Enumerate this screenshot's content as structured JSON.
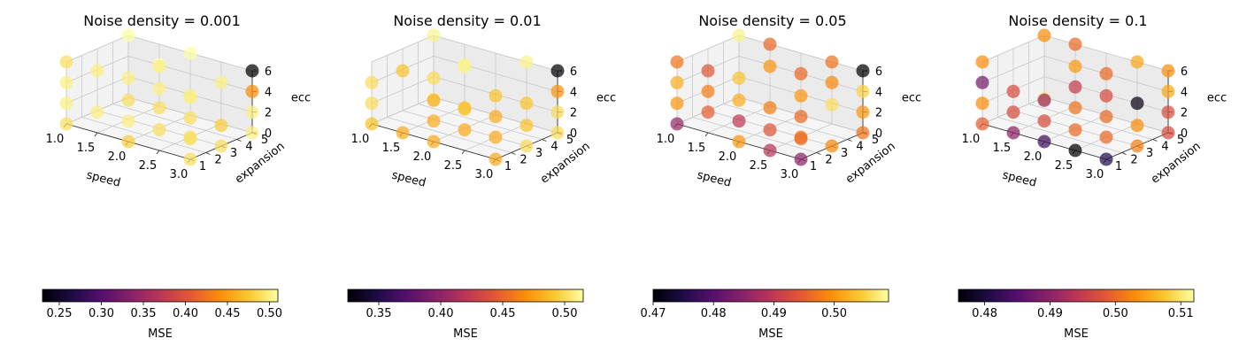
{
  "chart_data": [
    {
      "type": "scatter3d",
      "title": "Noise density = 0.001",
      "xlabel": "speed",
      "ylabel": "expansion",
      "zlabel": "ecc",
      "x_ticks": [
        "1.0",
        "1.5",
        "2.0",
        "2.5",
        "3.0"
      ],
      "y_ticks": [
        "1",
        "2",
        "3",
        "4",
        "5"
      ],
      "z_ticks": [
        "0",
        "2",
        "4",
        "6"
      ],
      "xlim": [
        1.0,
        3.0
      ],
      "ylim": [
        1,
        5
      ],
      "zlim": [
        0,
        6
      ],
      "colorbar": {
        "label": "MSE",
        "min": 0.23,
        "max": 0.51,
        "ticks": [
          "0.25",
          "0.30",
          "0.35",
          "0.40",
          "0.45",
          "0.50"
        ],
        "tick_values": [
          0.25,
          0.3,
          0.35,
          0.4,
          0.45,
          0.5
        ]
      },
      "points": [
        {
          "x": 1.0,
          "y": 1,
          "z": 6,
          "mse": 0.49
        },
        {
          "x": 1.0,
          "y": 1,
          "z": 4,
          "mse": 0.5
        },
        {
          "x": 1.0,
          "y": 1,
          "z": 2,
          "mse": 0.5
        },
        {
          "x": 1.0,
          "y": 1,
          "z": 0,
          "mse": 0.49
        },
        {
          "x": 1.5,
          "y": 1,
          "z": 6,
          "mse": 0.5
        },
        {
          "x": 1.5,
          "y": 1,
          "z": 2,
          "mse": 0.5
        },
        {
          "x": 2.0,
          "y": 1,
          "z": 4,
          "mse": 0.49
        },
        {
          "x": 2.0,
          "y": 1,
          "z": 2,
          "mse": 0.5
        },
        {
          "x": 2.0,
          "y": 1,
          "z": 0,
          "mse": 0.48
        },
        {
          "x": 2.5,
          "y": 1,
          "z": 6,
          "mse": 0.5
        },
        {
          "x": 2.5,
          "y": 1,
          "z": 2,
          "mse": 0.49
        },
        {
          "x": 3.0,
          "y": 1,
          "z": 6,
          "mse": 0.5
        },
        {
          "x": 3.0,
          "y": 1,
          "z": 4,
          "mse": 0.49
        },
        {
          "x": 3.0,
          "y": 1,
          "z": 2,
          "mse": 0.49
        },
        {
          "x": 3.0,
          "y": 1,
          "z": 0,
          "mse": 0.49
        },
        {
          "x": 1.5,
          "y": 3,
          "z": 4,
          "mse": 0.5
        },
        {
          "x": 2.0,
          "y": 3,
          "z": 6,
          "mse": 0.5
        },
        {
          "x": 2.0,
          "y": 3,
          "z": 2,
          "mse": 0.49
        },
        {
          "x": 2.5,
          "y": 3,
          "z": 4,
          "mse": 0.5
        },
        {
          "x": 2.5,
          "y": 3,
          "z": 0,
          "mse": 0.49
        },
        {
          "x": 3.0,
          "y": 3,
          "z": 2,
          "mse": 0.48
        },
        {
          "x": 3.0,
          "y": 3,
          "z": 0,
          "mse": 0.49
        },
        {
          "x": 1.0,
          "y": 5,
          "z": 6,
          "mse": 0.51
        },
        {
          "x": 1.5,
          "y": 5,
          "z": 4,
          "mse": 0.51
        },
        {
          "x": 2.0,
          "y": 5,
          "z": 6,
          "mse": 0.51
        },
        {
          "x": 2.5,
          "y": 5,
          "z": 4,
          "mse": 0.5
        },
        {
          "x": 3.0,
          "y": 5,
          "z": 6,
          "mse": 0.23
        },
        {
          "x": 3.0,
          "y": 5,
          "z": 4,
          "mse": 0.44
        },
        {
          "x": 3.0,
          "y": 5,
          "z": 2,
          "mse": 0.5
        },
        {
          "x": 3.0,
          "y": 5,
          "z": 0,
          "mse": 0.5
        }
      ]
    },
    {
      "type": "scatter3d",
      "title": "Noise density = 0.01",
      "xlabel": "speed",
      "ylabel": "expansion",
      "zlabel": "ecc",
      "x_ticks": [
        "1.0",
        "1.5",
        "2.0",
        "2.5",
        "3.0"
      ],
      "y_ticks": [
        "1",
        "2",
        "3",
        "4",
        "5"
      ],
      "z_ticks": [
        "0",
        "2",
        "4",
        "6"
      ],
      "xlim": [
        1.0,
        3.0
      ],
      "ylim": [
        1,
        5
      ],
      "zlim": [
        0,
        6
      ],
      "colorbar": {
        "label": "MSE",
        "min": 0.325,
        "max": 0.515,
        "ticks": [
          "0.35",
          "0.40",
          "0.45",
          "0.50"
        ],
        "tick_values": [
          0.35,
          0.4,
          0.45,
          0.5
        ]
      },
      "points": [
        {
          "x": 1.0,
          "y": 1,
          "z": 4,
          "mse": 0.5
        },
        {
          "x": 1.0,
          "y": 1,
          "z": 2,
          "mse": 0.5
        },
        {
          "x": 1.0,
          "y": 1,
          "z": 0,
          "mse": 0.49
        },
        {
          "x": 1.5,
          "y": 1,
          "z": 6,
          "mse": 0.49
        },
        {
          "x": 1.5,
          "y": 1,
          "z": 0,
          "mse": 0.48
        },
        {
          "x": 2.0,
          "y": 1,
          "z": 4,
          "mse": 0.48
        },
        {
          "x": 2.0,
          "y": 1,
          "z": 2,
          "mse": 0.48
        },
        {
          "x": 2.0,
          "y": 1,
          "z": 0,
          "mse": 0.48
        },
        {
          "x": 2.5,
          "y": 1,
          "z": 4,
          "mse": 0.49
        },
        {
          "x": 2.5,
          "y": 1,
          "z": 2,
          "mse": 0.48
        },
        {
          "x": 3.0,
          "y": 1,
          "z": 0,
          "mse": 0.48
        },
        {
          "x": 1.5,
          "y": 3,
          "z": 4,
          "mse": 0.5
        },
        {
          "x": 1.5,
          "y": 3,
          "z": 2,
          "mse": 0.51
        },
        {
          "x": 2.0,
          "y": 3,
          "z": 6,
          "mse": 0.51
        },
        {
          "x": 2.0,
          "y": 3,
          "z": 2,
          "mse": 0.49
        },
        {
          "x": 2.5,
          "y": 3,
          "z": 4,
          "mse": 0.49
        },
        {
          "x": 2.5,
          "y": 3,
          "z": 2,
          "mse": 0.48
        },
        {
          "x": 2.5,
          "y": 3,
          "z": 0,
          "mse": 0.48
        },
        {
          "x": 3.0,
          "y": 3,
          "z": 2,
          "mse": 0.49
        },
        {
          "x": 3.0,
          "y": 3,
          "z": 0,
          "mse": 0.5
        },
        {
          "x": 1.0,
          "y": 5,
          "z": 6,
          "mse": 0.51
        },
        {
          "x": 1.5,
          "y": 5,
          "z": 4,
          "mse": 0.51
        },
        {
          "x": 2.5,
          "y": 5,
          "z": 6,
          "mse": 0.51
        },
        {
          "x": 2.5,
          "y": 5,
          "z": 2,
          "mse": 0.49
        },
        {
          "x": 3.0,
          "y": 5,
          "z": 6,
          "mse": 0.325
        },
        {
          "x": 3.0,
          "y": 5,
          "z": 4,
          "mse": 0.47
        },
        {
          "x": 3.0,
          "y": 5,
          "z": 2,
          "mse": 0.5
        },
        {
          "x": 3.0,
          "y": 5,
          "z": 0,
          "mse": 0.5
        }
      ]
    },
    {
      "type": "scatter3d",
      "title": "Noise density = 0.05",
      "xlabel": "speed",
      "ylabel": "expansion",
      "zlabel": "ecc",
      "x_ticks": [
        "1.0",
        "1.5",
        "2.0",
        "2.5",
        "3.0"
      ],
      "y_ticks": [
        "1",
        "2",
        "3",
        "4",
        "5"
      ],
      "z_ticks": [
        "0",
        "2",
        "4",
        "6"
      ],
      "xlim": [
        1.0,
        3.0
      ],
      "ylim": [
        1,
        5
      ],
      "zlim": [
        0,
        6
      ],
      "colorbar": {
        "label": "MSE",
        "min": 0.47,
        "max": 0.509,
        "ticks": [
          "0.47",
          "0.48",
          "0.49",
          "0.50"
        ],
        "tick_values": [
          0.47,
          0.48,
          0.49,
          0.5
        ]
      },
      "points": [
        {
          "x": 1.0,
          "y": 1,
          "z": 6,
          "mse": 0.497
        },
        {
          "x": 1.0,
          "y": 1,
          "z": 4,
          "mse": 0.502
        },
        {
          "x": 1.0,
          "y": 1,
          "z": 2,
          "mse": 0.5
        },
        {
          "x": 1.0,
          "y": 1,
          "z": 0,
          "mse": 0.486
        },
        {
          "x": 1.5,
          "y": 1,
          "z": 6,
          "mse": 0.494
        },
        {
          "x": 1.5,
          "y": 1,
          "z": 4,
          "mse": 0.498
        },
        {
          "x": 1.5,
          "y": 1,
          "z": 2,
          "mse": 0.495
        },
        {
          "x": 2.0,
          "y": 1,
          "z": 4,
          "mse": 0.502
        },
        {
          "x": 2.0,
          "y": 1,
          "z": 2,
          "mse": 0.49
        },
        {
          "x": 2.0,
          "y": 1,
          "z": 0,
          "mse": 0.5
        },
        {
          "x": 2.5,
          "y": 1,
          "z": 2,
          "mse": 0.494
        },
        {
          "x": 2.5,
          "y": 1,
          "z": 0,
          "mse": 0.489
        },
        {
          "x": 3.0,
          "y": 1,
          "z": 2,
          "mse": 0.496
        },
        {
          "x": 3.0,
          "y": 1,
          "z": 0,
          "mse": 0.485
        },
        {
          "x": 1.5,
          "y": 3,
          "z": 4,
          "mse": 0.504
        },
        {
          "x": 2.0,
          "y": 3,
          "z": 6,
          "mse": 0.5
        },
        {
          "x": 2.0,
          "y": 3,
          "z": 2,
          "mse": 0.498
        },
        {
          "x": 2.5,
          "y": 3,
          "z": 4,
          "mse": 0.5
        },
        {
          "x": 2.5,
          "y": 3,
          "z": 2,
          "mse": 0.496
        },
        {
          "x": 2.5,
          "y": 3,
          "z": 0,
          "mse": 0.498
        },
        {
          "x": 3.0,
          "y": 3,
          "z": 4,
          "mse": 0.506
        },
        {
          "x": 3.0,
          "y": 3,
          "z": 0,
          "mse": 0.499
        },
        {
          "x": 1.0,
          "y": 5,
          "z": 6,
          "mse": 0.508
        },
        {
          "x": 1.5,
          "y": 5,
          "z": 6,
          "mse": 0.496
        },
        {
          "x": 2.0,
          "y": 5,
          "z": 4,
          "mse": 0.496
        },
        {
          "x": 2.5,
          "y": 5,
          "z": 6,
          "mse": 0.497
        },
        {
          "x": 2.5,
          "y": 5,
          "z": 4,
          "mse": 0.499
        },
        {
          "x": 3.0,
          "y": 5,
          "z": 6,
          "mse": 0.47
        },
        {
          "x": 3.0,
          "y": 5,
          "z": 4,
          "mse": 0.505
        },
        {
          "x": 3.0,
          "y": 5,
          "z": 2,
          "mse": 0.5
        },
        {
          "x": 3.0,
          "y": 5,
          "z": 0,
          "mse": 0.497
        }
      ]
    },
    {
      "type": "scatter3d",
      "title": "Noise density = 0.1",
      "xlabel": "speed",
      "ylabel": "expansion",
      "zlabel": "ecc",
      "x_ticks": [
        "1.0",
        "1.5",
        "2.0",
        "2.5",
        "3.0"
      ],
      "y_ticks": [
        "1",
        "2",
        "3",
        "4",
        "5"
      ],
      "z_ticks": [
        "0",
        "2",
        "4",
        "6"
      ],
      "xlim": [
        1.0,
        3.0
      ],
      "ylim": [
        1,
        5
      ],
      "zlim": [
        0,
        6
      ],
      "colorbar": {
        "label": "MSE",
        "min": 0.476,
        "max": 0.512,
        "ticks": [
          "0.48",
          "0.49",
          "0.50",
          "0.51"
        ],
        "tick_values": [
          0.48,
          0.49,
          0.5,
          0.51
        ]
      },
      "points": [
        {
          "x": 1.0,
          "y": 1,
          "z": 6,
          "mse": 0.503
        },
        {
          "x": 1.0,
          "y": 1,
          "z": 4,
          "mse": 0.488
        },
        {
          "x": 1.0,
          "y": 1,
          "z": 2,
          "mse": 0.503
        },
        {
          "x": 1.0,
          "y": 1,
          "z": 0,
          "mse": 0.499
        },
        {
          "x": 1.5,
          "y": 1,
          "z": 4,
          "mse": 0.497
        },
        {
          "x": 1.5,
          "y": 1,
          "z": 2,
          "mse": 0.497
        },
        {
          "x": 1.5,
          "y": 1,
          "z": 0,
          "mse": 0.49
        },
        {
          "x": 2.0,
          "y": 1,
          "z": 4,
          "mse": 0.491
        },
        {
          "x": 2.0,
          "y": 1,
          "z": 2,
          "mse": 0.497
        },
        {
          "x": 2.0,
          "y": 1,
          "z": 0,
          "mse": 0.483
        },
        {
          "x": 2.5,
          "y": 1,
          "z": 2,
          "mse": 0.5
        },
        {
          "x": 2.5,
          "y": 1,
          "z": 0,
          "mse": 0.476
        },
        {
          "x": 3.0,
          "y": 1,
          "z": 0,
          "mse": 0.481
        },
        {
          "x": 1.5,
          "y": 3,
          "z": 2,
          "mse": 0.509
        },
        {
          "x": 2.0,
          "y": 3,
          "z": 6,
          "mse": 0.504
        },
        {
          "x": 2.0,
          "y": 3,
          "z": 4,
          "mse": 0.495
        },
        {
          "x": 2.0,
          "y": 3,
          "z": 2,
          "mse": 0.501
        },
        {
          "x": 2.5,
          "y": 3,
          "z": 4,
          "mse": 0.497
        },
        {
          "x": 2.5,
          "y": 3,
          "z": 2,
          "mse": 0.5
        },
        {
          "x": 2.5,
          "y": 3,
          "z": 0,
          "mse": 0.5
        },
        {
          "x": 3.0,
          "y": 3,
          "z": 2,
          "mse": 0.503
        },
        {
          "x": 3.0,
          "y": 3,
          "z": 0,
          "mse": 0.502
        },
        {
          "x": 1.0,
          "y": 5,
          "z": 6,
          "mse": 0.503
        },
        {
          "x": 1.5,
          "y": 5,
          "z": 6,
          "mse": 0.5
        },
        {
          "x": 2.0,
          "y": 5,
          "z": 4,
          "mse": 0.5
        },
        {
          "x": 2.5,
          "y": 5,
          "z": 6,
          "mse": 0.505
        },
        {
          "x": 2.5,
          "y": 5,
          "z": 2,
          "mse": 0.477
        },
        {
          "x": 3.0,
          "y": 5,
          "z": 6,
          "mse": 0.503
        },
        {
          "x": 3.0,
          "y": 5,
          "z": 4,
          "mse": 0.505
        },
        {
          "x": 3.0,
          "y": 5,
          "z": 2,
          "mse": 0.497
        },
        {
          "x": 3.0,
          "y": 5,
          "z": 0,
          "mse": 0.497
        }
      ]
    }
  ]
}
